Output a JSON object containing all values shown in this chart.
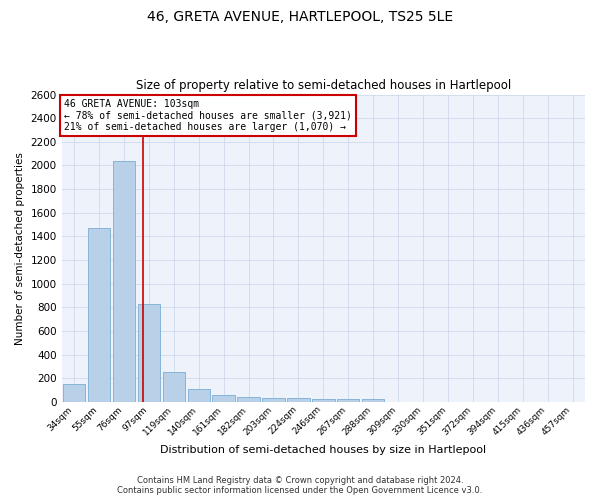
{
  "title": "46, GRETA AVENUE, HARTLEPOOL, TS25 5LE",
  "subtitle": "Size of property relative to semi-detached houses in Hartlepool",
  "xlabel": "Distribution of semi-detached houses by size in Hartlepool",
  "ylabel": "Number of semi-detached properties",
  "categories": [
    "34sqm",
    "55sqm",
    "76sqm",
    "97sqm",
    "119sqm",
    "140sqm",
    "161sqm",
    "182sqm",
    "203sqm",
    "224sqm",
    "246sqm",
    "267sqm",
    "288sqm",
    "309sqm",
    "330sqm",
    "351sqm",
    "372sqm",
    "394sqm",
    "415sqm",
    "436sqm",
    "457sqm"
  ],
  "values": [
    150,
    1470,
    2040,
    830,
    248,
    110,
    60,
    40,
    28,
    28,
    26,
    26,
    20,
    0,
    0,
    0,
    0,
    0,
    0,
    0,
    0
  ],
  "bar_color": "#b8d0e8",
  "bar_edge_color": "#7aadd4",
  "property_line_color": "#cc0000",
  "annotation_title": "46 GRETA AVENUE: 103sqm",
  "annotation_line1": "← 78% of semi-detached houses are smaller (3,921)",
  "annotation_line2": "21% of semi-detached houses are larger (1,070) →",
  "annotation_box_color": "#cc0000",
  "footer_line1": "Contains HM Land Registry data © Crown copyright and database right 2024.",
  "footer_line2": "Contains public sector information licensed under the Open Government Licence v3.0.",
  "ylim": [
    0,
    2600
  ],
  "background_color": "#eef2fa",
  "plot_background": "#eef2fa",
  "grid_color": "#c8d4e8"
}
